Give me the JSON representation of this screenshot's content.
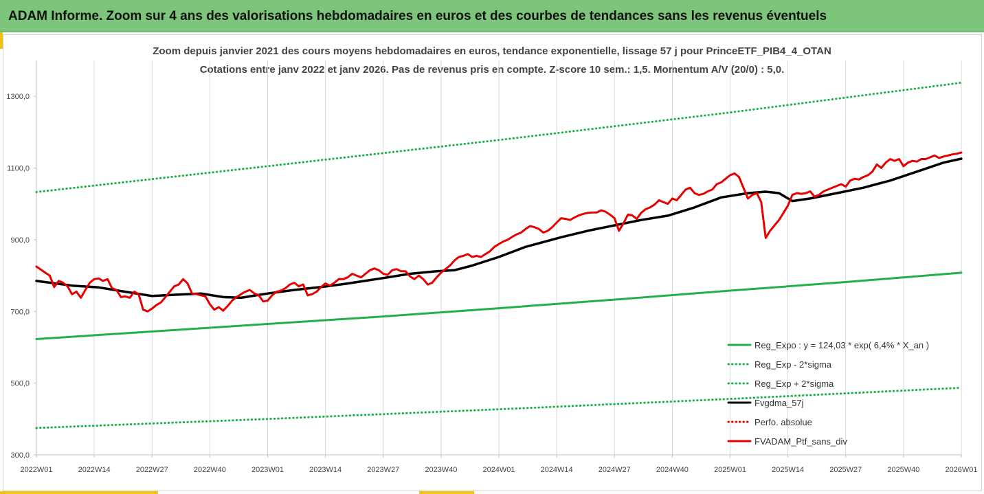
{
  "header": {
    "title": "ADAM Informe. Zoom sur 4 ans des valorisations hebdomadaires en euros et des courbes de tendances sans les revenus éventuels"
  },
  "chart_data": {
    "type": "line",
    "title": "Zoom depuis janvier 2021 des cours moyens hebdomadaires  en euros, tendance exponentielle, lissage 57 j pour PrinceETF_PIB4_4_OTAN",
    "subtitle": "Cotations entre janv 2022 et janv 2026. Pas de revenus pris en compte. Z-score 10 sem.: 1,5. Momentum  A/V (20/0) : 5,0.",
    "ylim": [
      300,
      1400
    ],
    "yticks": [
      300,
      500,
      700,
      900,
      1100,
      1300
    ],
    "ytick_labels": [
      "300,0",
      "500,0",
      "700,0",
      "900,0",
      "1100,0",
      "1300,0"
    ],
    "x_range": [
      0,
      208
    ],
    "xtick_positions": [
      0,
      13,
      26,
      39,
      52,
      65,
      78,
      91,
      104,
      117,
      130,
      143,
      156,
      169,
      182,
      195,
      208
    ],
    "xtick_labels": [
      "2022W01",
      "2022W14",
      "2022W27",
      "2022W40",
      "2023W01",
      "2023W14",
      "2023W27",
      "2023W40",
      "2024W01",
      "2024W14",
      "2024W27",
      "2024W40",
      "2025W01",
      "2025W14",
      "2025W27",
      "2025W40",
      "2026W01"
    ],
    "legend_position": "bottom-right",
    "grid": "vertical",
    "series": [
      {
        "name": "Reg_Expo : y = 124,03 * exp( 6,4% *  X_an )",
        "style": "solid",
        "color": "#22b04b",
        "points": [
          [
            0,
            623
          ],
          [
            26,
            644
          ],
          [
            52,
            665
          ],
          [
            78,
            686
          ],
          [
            104,
            709
          ],
          [
            130,
            733
          ],
          [
            156,
            758
          ],
          [
            182,
            782
          ],
          [
            208,
            808
          ]
        ]
      },
      {
        "name": "Reg_Exp - 2*sigma",
        "style": "dotted",
        "color": "#22b04b",
        "points": [
          [
            0,
            375
          ],
          [
            52,
            400
          ],
          [
            104,
            427
          ],
          [
            156,
            456
          ],
          [
            208,
            487
          ]
        ]
      },
      {
        "name": "Reg_Exp + 2*sigma",
        "style": "dotted",
        "color": "#22b04b",
        "points": [
          [
            0,
            1033
          ],
          [
            52,
            1105
          ],
          [
            104,
            1178
          ],
          [
            156,
            1255
          ],
          [
            208,
            1338
          ]
        ]
      },
      {
        "name": "Fvgdma_57j",
        "style": "solid",
        "color": "#000000",
        "points": [
          [
            0,
            785
          ],
          [
            8,
            772
          ],
          [
            14,
            767
          ],
          [
            20,
            755
          ],
          [
            26,
            743
          ],
          [
            32,
            747
          ],
          [
            37,
            750
          ],
          [
            42,
            740
          ],
          [
            46,
            738
          ],
          [
            52,
            750
          ],
          [
            58,
            760
          ],
          [
            64,
            768
          ],
          [
            70,
            778
          ],
          [
            78,
            793
          ],
          [
            84,
            805
          ],
          [
            90,
            812
          ],
          [
            94,
            815
          ],
          [
            98,
            828
          ],
          [
            104,
            852
          ],
          [
            110,
            880
          ],
          [
            118,
            907
          ],
          [
            124,
            925
          ],
          [
            130,
            940
          ],
          [
            136,
            955
          ],
          [
            142,
            967
          ],
          [
            148,
            990
          ],
          [
            154,
            1018
          ],
          [
            160,
            1030
          ],
          [
            164,
            1034
          ],
          [
            167,
            1030
          ],
          [
            170,
            1008
          ],
          [
            174,
            1015
          ],
          [
            180,
            1030
          ],
          [
            186,
            1045
          ],
          [
            192,
            1065
          ],
          [
            198,
            1090
          ],
          [
            204,
            1115
          ],
          [
            208,
            1126
          ]
        ]
      },
      {
        "name": "Perfo. absolue",
        "style": "dotted",
        "color": "#e00000",
        "points": []
      },
      {
        "name": "FVADAM_Ptf_sans_div",
        "style": "solid",
        "color": "#e60000",
        "points": [
          [
            0,
            825
          ],
          [
            2,
            808
          ],
          [
            3,
            800
          ],
          [
            4,
            768
          ],
          [
            5,
            785
          ],
          [
            6,
            780
          ],
          [
            7,
            770
          ],
          [
            8,
            748
          ],
          [
            9,
            755
          ],
          [
            10,
            738
          ],
          [
            11,
            760
          ],
          [
            12,
            780
          ],
          [
            13,
            790
          ],
          [
            14,
            792
          ],
          [
            15,
            785
          ],
          [
            16,
            790
          ],
          [
            17,
            765
          ],
          [
            18,
            760
          ],
          [
            19,
            740
          ],
          [
            20,
            742
          ],
          [
            21,
            738
          ],
          [
            22,
            755
          ],
          [
            23,
            748
          ],
          [
            24,
            705
          ],
          [
            25,
            700
          ],
          [
            26,
            708
          ],
          [
            27,
            718
          ],
          [
            28,
            725
          ],
          [
            29,
            740
          ],
          [
            30,
            755
          ],
          [
            31,
            770
          ],
          [
            32,
            775
          ],
          [
            33,
            790
          ],
          [
            34,
            778
          ],
          [
            35,
            750
          ],
          [
            36,
            748
          ],
          [
            37,
            745
          ],
          [
            38,
            742
          ],
          [
            39,
            720
          ],
          [
            40,
            705
          ],
          [
            41,
            712
          ],
          [
            42,
            702
          ],
          [
            43,
            715
          ],
          [
            44,
            730
          ],
          [
            45,
            740
          ],
          [
            46,
            748
          ],
          [
            47,
            755
          ],
          [
            48,
            760
          ],
          [
            49,
            750
          ],
          [
            50,
            745
          ],
          [
            51,
            728
          ],
          [
            52,
            730
          ],
          [
            53,
            745
          ],
          [
            54,
            755
          ],
          [
            55,
            758
          ],
          [
            56,
            765
          ],
          [
            57,
            775
          ],
          [
            58,
            780
          ],
          [
            59,
            770
          ],
          [
            60,
            775
          ],
          [
            61,
            745
          ],
          [
            62,
            748
          ],
          [
            63,
            755
          ],
          [
            64,
            768
          ],
          [
            65,
            778
          ],
          [
            66,
            772
          ],
          [
            67,
            780
          ],
          [
            68,
            790
          ],
          [
            69,
            790
          ],
          [
            70,
            795
          ],
          [
            71,
            805
          ],
          [
            72,
            800
          ],
          [
            73,
            795
          ],
          [
            74,
            805
          ],
          [
            75,
            815
          ],
          [
            76,
            820
          ],
          [
            77,
            815
          ],
          [
            78,
            805
          ],
          [
            79,
            802
          ],
          [
            80,
            815
          ],
          [
            81,
            818
          ],
          [
            82,
            812
          ],
          [
            83,
            812
          ],
          [
            84,
            798
          ],
          [
            85,
            790
          ],
          [
            86,
            800
          ],
          [
            87,
            790
          ],
          [
            88,
            775
          ],
          [
            89,
            780
          ],
          [
            90,
            795
          ],
          [
            91,
            808
          ],
          [
            92,
            818
          ],
          [
            93,
            828
          ],
          [
            94,
            842
          ],
          [
            95,
            852
          ],
          [
            96,
            855
          ],
          [
            97,
            860
          ],
          [
            98,
            852
          ],
          [
            99,
            855
          ],
          [
            100,
            852
          ],
          [
            101,
            860
          ],
          [
            102,
            868
          ],
          [
            103,
            880
          ],
          [
            104,
            888
          ],
          [
            105,
            895
          ],
          [
            106,
            900
          ],
          [
            107,
            908
          ],
          [
            108,
            915
          ],
          [
            109,
            920
          ],
          [
            110,
            930
          ],
          [
            111,
            938
          ],
          [
            112,
            935
          ],
          [
            113,
            930
          ],
          [
            114,
            920
          ],
          [
            115,
            925
          ],
          [
            116,
            935
          ],
          [
            117,
            948
          ],
          [
            118,
            960
          ],
          [
            119,
            958
          ],
          [
            120,
            955
          ],
          [
            121,
            962
          ],
          [
            122,
            968
          ],
          [
            123,
            972
          ],
          [
            124,
            975
          ],
          [
            125,
            976
          ],
          [
            126,
            976
          ],
          [
            127,
            982
          ],
          [
            128,
            978
          ],
          [
            129,
            970
          ],
          [
            130,
            960
          ],
          [
            131,
            925
          ],
          [
            132,
            945
          ],
          [
            133,
            970
          ],
          [
            134,
            968
          ],
          [
            135,
            958
          ],
          [
            136,
            975
          ],
          [
            137,
            985
          ],
          [
            138,
            990
          ],
          [
            139,
            998
          ],
          [
            140,
            1010
          ],
          [
            141,
            1005
          ],
          [
            142,
            1000
          ],
          [
            143,
            1015
          ],
          [
            144,
            1010
          ],
          [
            145,
            1025
          ],
          [
            146,
            1040
          ],
          [
            147,
            1045
          ],
          [
            148,
            1030
          ],
          [
            149,
            1025
          ],
          [
            150,
            1028
          ],
          [
            151,
            1035
          ],
          [
            152,
            1040
          ],
          [
            153,
            1055
          ],
          [
            154,
            1060
          ],
          [
            155,
            1070
          ],
          [
            156,
            1080
          ],
          [
            157,
            1085
          ],
          [
            158,
            1075
          ],
          [
            159,
            1045
          ],
          [
            160,
            1015
          ],
          [
            161,
            1025
          ],
          [
            162,
            1030
          ],
          [
            163,
            1005
          ],
          [
            164,
            905
          ],
          [
            165,
            925
          ],
          [
            166,
            940
          ],
          [
            167,
            955
          ],
          [
            168,
            975
          ],
          [
            169,
            995
          ],
          [
            170,
            1025
          ],
          [
            171,
            1030
          ],
          [
            172,
            1028
          ],
          [
            173,
            1030
          ],
          [
            174,
            1035
          ],
          [
            175,
            1020
          ],
          [
            176,
            1025
          ],
          [
            177,
            1035
          ],
          [
            178,
            1040
          ],
          [
            179,
            1045
          ],
          [
            180,
            1050
          ],
          [
            181,
            1055
          ],
          [
            182,
            1048
          ],
          [
            183,
            1065
          ],
          [
            184,
            1070
          ],
          [
            185,
            1068
          ],
          [
            186,
            1075
          ],
          [
            187,
            1080
          ],
          [
            188,
            1090
          ],
          [
            189,
            1110
          ],
          [
            190,
            1100
          ],
          [
            191,
            1115
          ],
          [
            192,
            1125
          ],
          [
            193,
            1120
          ],
          [
            194,
            1125
          ],
          [
            195,
            1105
          ],
          [
            196,
            1115
          ],
          [
            197,
            1120
          ],
          [
            198,
            1118
          ],
          [
            199,
            1125
          ],
          [
            200,
            1125
          ],
          [
            201,
            1130
          ],
          [
            202,
            1135
          ],
          [
            203,
            1128
          ],
          [
            204,
            1132
          ],
          [
            205,
            1135
          ],
          [
            206,
            1138
          ],
          [
            207,
            1140
          ],
          [
            208,
            1143
          ]
        ]
      }
    ]
  }
}
